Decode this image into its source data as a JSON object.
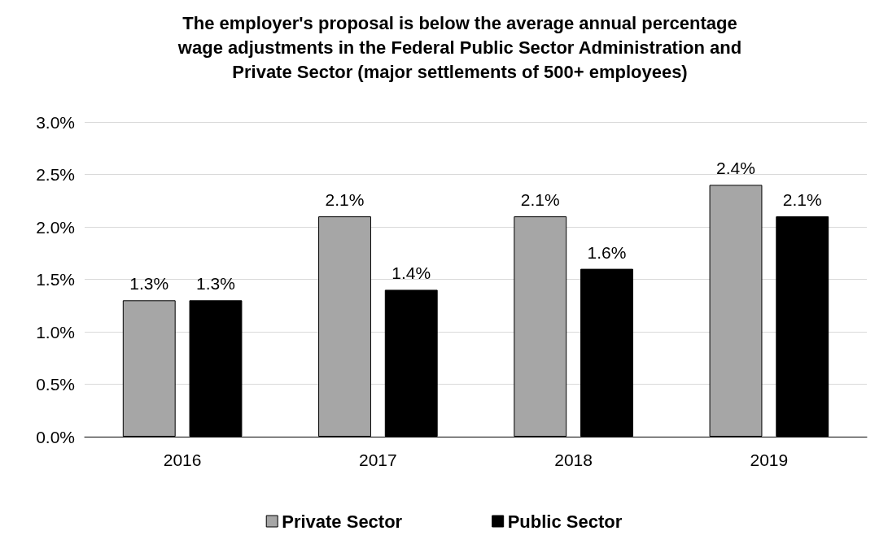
{
  "chart_data": {
    "type": "bar",
    "title": "The employer's proposal is below the average annual percentage\nwage adjustments in the Federal Public Sector Administration and\nPrivate Sector (major settlements of 500+ employees)",
    "categories": [
      "2016",
      "2017",
      "2018",
      "2019"
    ],
    "series": [
      {
        "name": "Private Sector",
        "color": "#a6a6a6",
        "values": [
          1.3,
          2.1,
          2.1,
          2.4
        ],
        "value_labels": [
          "1.3%",
          "2.1%",
          "2.1%",
          "2.4%"
        ]
      },
      {
        "name": "Public Sector",
        "color": "#000000",
        "values": [
          1.3,
          1.4,
          1.6,
          2.1
        ],
        "value_labels": [
          "1.3%",
          "1.4%",
          "1.6%",
          "2.1%"
        ]
      }
    ],
    "ylim": [
      0,
      3
    ],
    "yticks": [
      {
        "value": 0,
        "label": "0.0%"
      },
      {
        "value": 0.5,
        "label": "0.5%"
      },
      {
        "value": 1,
        "label": "1.0%"
      },
      {
        "value": 1.5,
        "label": "1.5%"
      },
      {
        "value": 2,
        "label": "2.0%"
      },
      {
        "value": 2.5,
        "label": "2.5%"
      },
      {
        "value": 3,
        "label": "3.0%"
      }
    ],
    "grid": "y",
    "legend": "bottom"
  }
}
